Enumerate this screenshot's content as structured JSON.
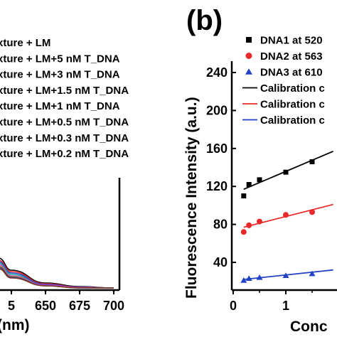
{
  "chart_data": [
    {
      "panel": "a",
      "type": "line",
      "xlabel": "(nm)",
      "x_ticks": [
        "5",
        "650",
        "675",
        "700"
      ],
      "legend": [
        {
          "label": "xture + LM",
          "color": "#000000"
        },
        {
          "label": "xture + LM+5 nM T_DNA",
          "color": "#e8282b"
        },
        {
          "label": "xture + LM+3 nM T_DNA",
          "color": "#2142c4"
        },
        {
          "label": "xture + LM+1.5 nM T_DNA",
          "color": "#1aa89a"
        },
        {
          "label": "xture + LM+1 nM T_DNA",
          "color": "#d43cc8"
        },
        {
          "label": "xture + LM+0.5 nM T_DNA",
          "color": "#9c9a1a"
        },
        {
          "label": "xture + LM+0.3 nM T_DNA",
          "color": "#3a2a9a"
        },
        {
          "label": "xture + LM+0.2 nM T_DNA",
          "color": "#7a3a2a"
        }
      ],
      "x": [
        615,
        625,
        650,
        675,
        700
      ],
      "series_tail": [
        {
          "color": "#000000",
          "values": [
            45,
            28,
            10,
            5,
            3
          ]
        },
        {
          "color": "#e8282b",
          "values": [
            42,
            26,
            9,
            4,
            3
          ]
        },
        {
          "color": "#2142c4",
          "values": [
            40,
            24,
            8,
            4,
            3
          ]
        },
        {
          "color": "#1aa89a",
          "values": [
            38,
            22,
            7,
            4,
            3
          ]
        },
        {
          "color": "#d43cc8",
          "values": [
            36,
            20,
            7,
            4,
            3
          ]
        },
        {
          "color": "#9c9a1a",
          "values": [
            34,
            19,
            6,
            3,
            3
          ]
        },
        {
          "color": "#3a2a9a",
          "values": [
            32,
            18,
            6,
            3,
            3
          ]
        },
        {
          "color": "#7a3a2a",
          "values": [
            30,
            17,
            6,
            3,
            3
          ]
        }
      ]
    },
    {
      "panel": "b",
      "type": "scatter",
      "tag": "(b)",
      "ylabel": "Fluorescence Intensity (a.u.)",
      "xlabel": "Conc",
      "ylim": [
        0,
        250
      ],
      "xlim": [
        0,
        1.9
      ],
      "y_ticks": [
        40,
        80,
        120,
        160,
        200,
        240
      ],
      "x_ticks": [
        0,
        1
      ],
      "legend": [
        {
          "label": "DNA1 at 520",
          "kind": "square",
          "color": "#000000"
        },
        {
          "label": "DNA2 at 563",
          "kind": "circle",
          "color": "#e8282b"
        },
        {
          "label": "DNA3 at 610",
          "kind": "triangle",
          "color": "#2142c4"
        },
        {
          "label": "Calibration c",
          "kind": "line",
          "color": "#000000"
        },
        {
          "label": "Calibration c",
          "kind": "line",
          "color": "#e8282b"
        },
        {
          "label": "Calibration c",
          "kind": "line",
          "color": "#2142c4"
        }
      ],
      "series": [
        {
          "name": "DNA1 at 520",
          "marker": "square",
          "color": "#000000",
          "x": [
            0.2,
            0.3,
            0.5,
            1.0,
            1.5
          ],
          "y": [
            110,
            122,
            127,
            135,
            146
          ]
        },
        {
          "name": "DNA2 at 563",
          "marker": "circle",
          "color": "#e8282b",
          "x": [
            0.2,
            0.3,
            0.5,
            1.0,
            1.5
          ],
          "y": [
            72,
            79,
            83,
            90,
            93
          ]
        },
        {
          "name": "DNA3 at 610",
          "marker": "triangle",
          "color": "#2142c4",
          "x": [
            0.2,
            0.3,
            0.5,
            1.0,
            1.5
          ],
          "y": [
            21,
            23,
            24,
            26,
            28
          ]
        }
      ],
      "fits": [
        {
          "color": "#000000",
          "x": [
            0.2,
            1.9
          ],
          "y": [
            117,
            157
          ]
        },
        {
          "color": "#e8282b",
          "x": [
            0.2,
            1.9
          ],
          "y": [
            77,
            101
          ]
        },
        {
          "color": "#2142c4",
          "x": [
            0.2,
            1.9
          ],
          "y": [
            22,
            32
          ]
        }
      ]
    }
  ]
}
